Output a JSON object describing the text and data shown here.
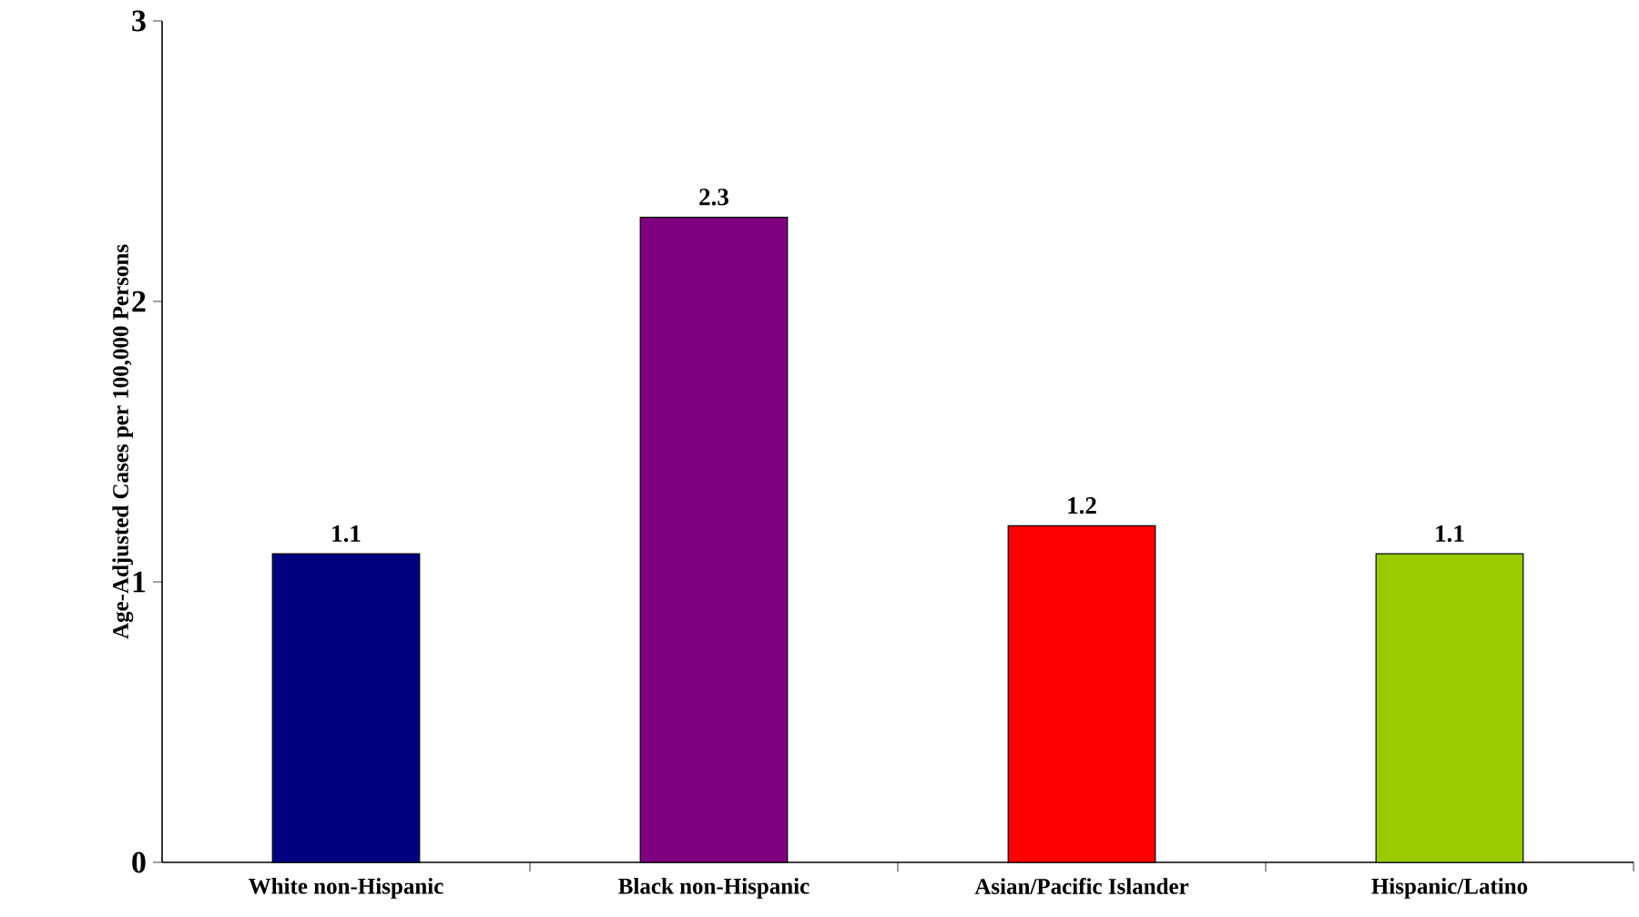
{
  "chart_data": {
    "type": "bar",
    "ylabel": "Age-Adjusted Cases per 100,000 Persons",
    "categories": [
      "White non-Hispanic",
      "Black non-Hispanic",
      "Asian/Pacific Islander",
      "Hispanic/Latino"
    ],
    "values": [
      1.1,
      2.3,
      1.2,
      1.1
    ],
    "colors": [
      "#000080",
      "#800080",
      "#ff0000",
      "#99cc00"
    ],
    "ylim": [
      0,
      3
    ],
    "yticks": [
      0,
      1,
      2,
      3
    ],
    "data_labels": true
  }
}
